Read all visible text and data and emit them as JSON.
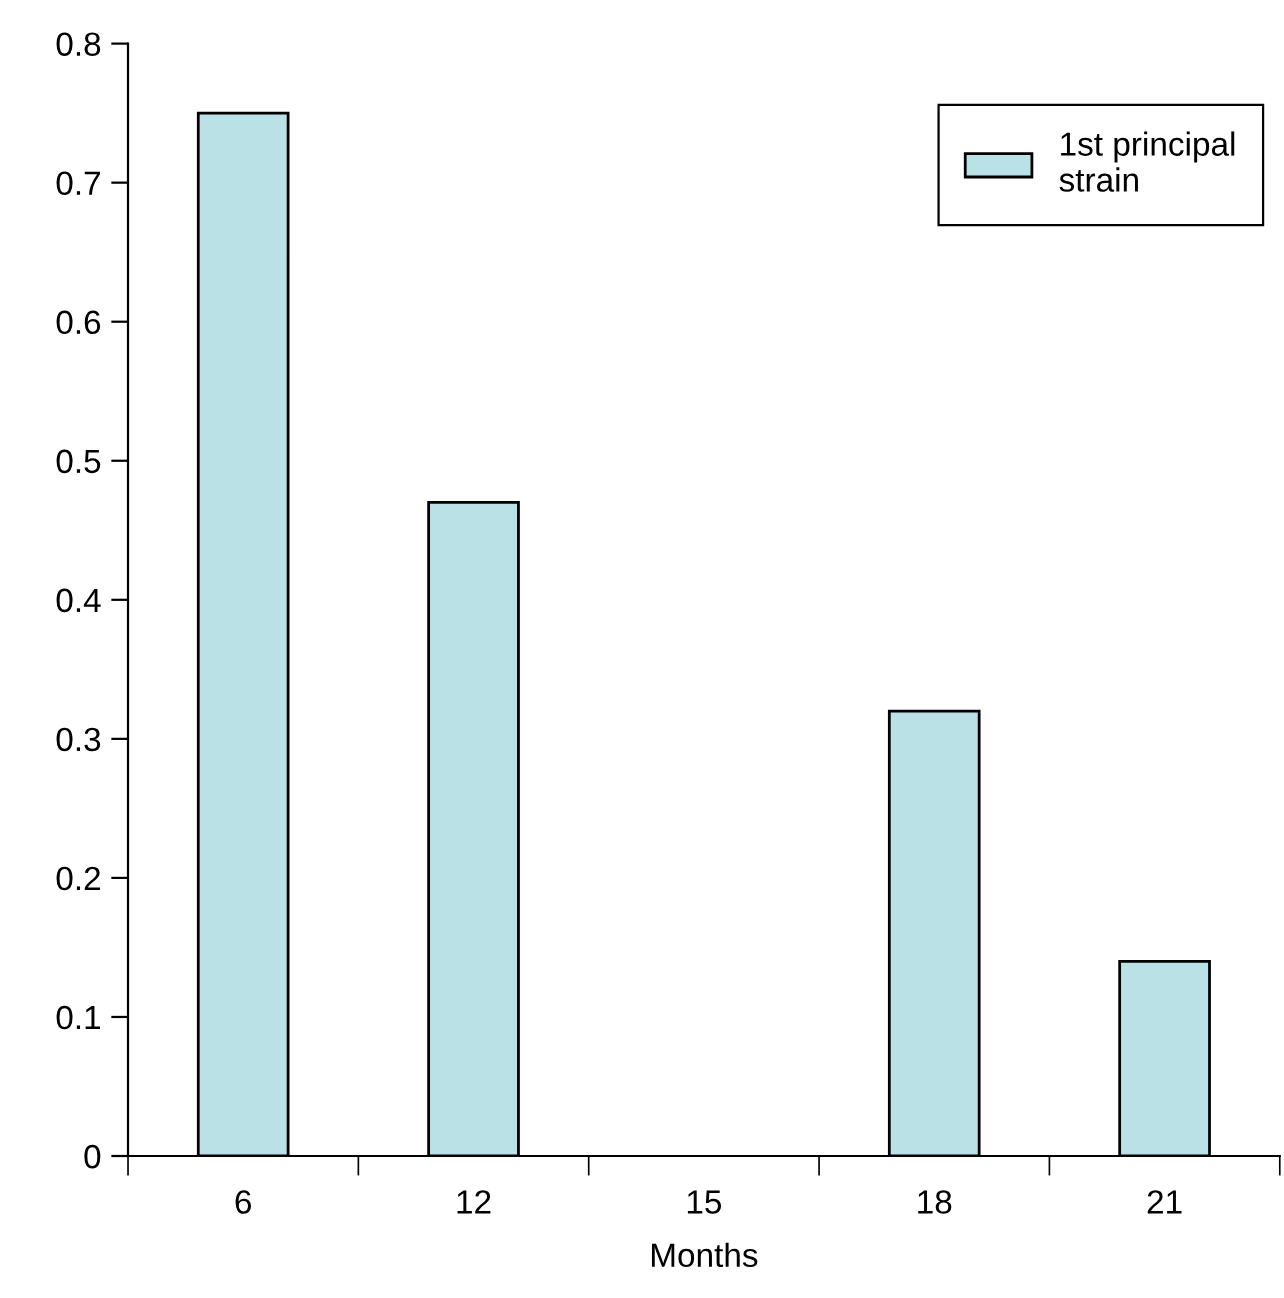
{
  "chart_data": {
    "type": "bar",
    "xlabel": "Months",
    "categories": [
      "6",
      "12",
      "15",
      "18",
      "21"
    ],
    "series": [
      {
        "name": "1st principal\nstrain",
        "color": "#b9e1e6",
        "values": [
          0.75,
          0.47,
          null,
          0.32,
          0.14
        ]
      }
    ],
    "ylim": [
      0,
      0.8
    ],
    "yticks": [
      0,
      0.1,
      0.2,
      0.3,
      0.4,
      0.5,
      0.6,
      0.7,
      0.8
    ],
    "grid": false,
    "legend": "top right"
  }
}
